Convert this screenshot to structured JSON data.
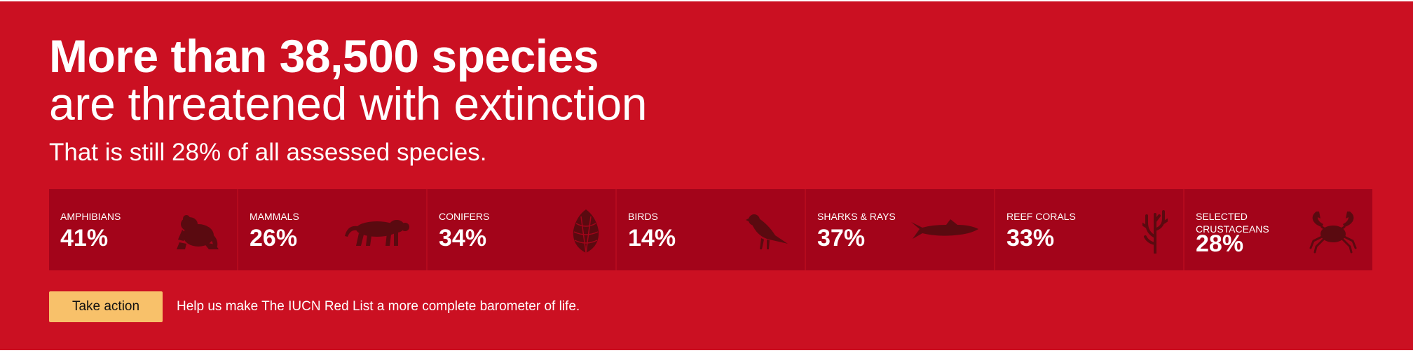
{
  "banner": {
    "headline": "More than 38,500 species",
    "subheadline": "are threatened with extinction",
    "tagline": "That is still 28% of all assessed species.",
    "colors": {
      "background": "#cb1022",
      "card": "#a3041a",
      "icon": "#5a0a10",
      "button": "#f8c16a"
    }
  },
  "stats": [
    {
      "label": "AMPHIBIANS",
      "value": "41%",
      "icon": "frog-icon"
    },
    {
      "label": "MAMMALS",
      "value": "26%",
      "icon": "tiger-icon"
    },
    {
      "label": "CONIFERS",
      "value": "34%",
      "icon": "pine-cone-icon"
    },
    {
      "label": "BIRDS",
      "value": "14%",
      "icon": "bird-icon"
    },
    {
      "label": "SHARKS & RAYS",
      "value": "37%",
      "icon": "shark-icon"
    },
    {
      "label": "REEF CORALS",
      "value": "33%",
      "icon": "coral-icon"
    },
    {
      "label": "SELECTED CRUSTACEANS",
      "value": "28%",
      "icon": "crab-icon"
    }
  ],
  "cta": {
    "button_label": "Take action",
    "text": "Help us make The IUCN Red List a more complete barometer of life."
  }
}
